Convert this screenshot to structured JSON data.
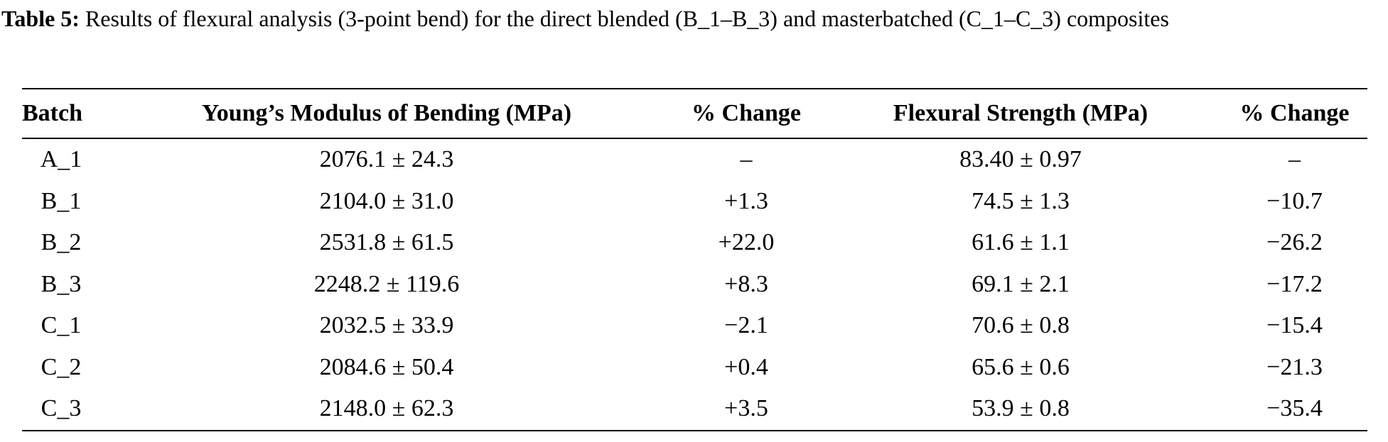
{
  "caption": {
    "label": "Table 5:",
    "text": "Results of flexural analysis (3-point bend) for the direct blended (B_1–B_3) and masterbatched (C_1–C_3) composites"
  },
  "table": {
    "header": [
      "Batch",
      "Young’s Modulus of Bending (MPa)",
      "% Change",
      "Flexural Strength (MPa)",
      "% Change"
    ],
    "rows": [
      [
        "A_1",
        "2076.1 ± 24.3",
        "–",
        "83.40 ± 0.97",
        "–"
      ],
      [
        "B_1",
        "2104.0 ± 31.0",
        "+1.3",
        "74.5 ± 1.3",
        "−10.7"
      ],
      [
        "B_2",
        "2531.8 ± 61.5",
        "+22.0",
        "61.6 ± 1.1",
        "−26.2"
      ],
      [
        "B_3",
        "2248.2 ± 119.6",
        "+8.3",
        "69.1 ± 2.1",
        "−17.2"
      ],
      [
        "C_1",
        "2032.5 ± 33.9",
        "−2.1",
        "70.6 ± 0.8",
        "−15.4"
      ],
      [
        "C_2",
        "2084.6 ± 50.4",
        "+0.4",
        "65.6 ± 0.6",
        "−21.3"
      ],
      [
        "C_3",
        "2148.0 ± 62.3",
        "+3.5",
        "53.9 ± 0.8",
        "−35.4"
      ]
    ]
  }
}
